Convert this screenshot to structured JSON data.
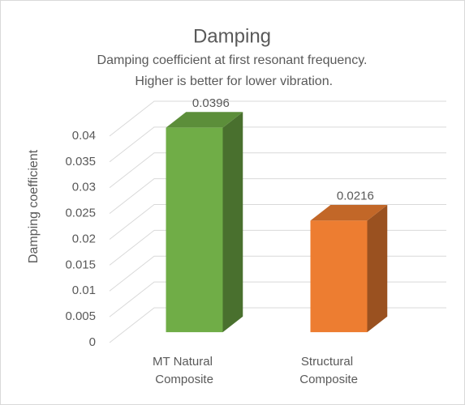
{
  "chart_data": {
    "type": "bar3d",
    "title": "Damping",
    "subtitle": "Damping coefficient at first resonant frequency. Higher is better for lower vibration.",
    "y_label": "Damping coefficient",
    "categories": [
      "MT Natural Composite",
      "Structural Composite"
    ],
    "values": [
      0.0396,
      0.0216
    ],
    "colors": [
      "#70ad47",
      "#ed7d31"
    ],
    "ylim": [
      0,
      0.04
    ],
    "yticks": [
      0,
      0.005,
      0.01,
      0.015,
      0.02,
      0.025,
      0.03,
      0.035,
      0.04
    ],
    "grid": true
  }
}
